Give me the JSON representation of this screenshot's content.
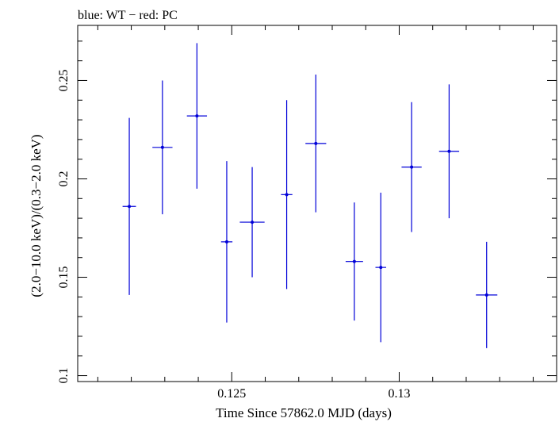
{
  "chart_data": {
    "type": "scatter",
    "title": "blue: WT − red: PC",
    "xlabel": "Time Since 57862.0 MJD (days)",
    "ylabel": "(2.0−10.0 keV)/(0.3−2.0 keV)",
    "xlim": [
      0.1204,
      0.1347
    ],
    "ylim": [
      0.097,
      0.278
    ],
    "x_ticks": [
      {
        "value": 0.125,
        "label": "0.125"
      },
      {
        "value": 0.13,
        "label": "0.13"
      }
    ],
    "y_ticks": [
      {
        "value": 0.1,
        "label": "0.1"
      },
      {
        "value": 0.15,
        "label": "0.15"
      },
      {
        "value": 0.2,
        "label": "0.2"
      },
      {
        "value": 0.25,
        "label": "0.25"
      }
    ],
    "grid": false,
    "series": [
      {
        "name": "WT",
        "color": "#0000d8",
        "points": [
          {
            "x": 0.12194,
            "xerr": 0.0002,
            "y": 0.186,
            "yerr_lo": 0.045,
            "yerr_hi": 0.045
          },
          {
            "x": 0.12293,
            "xerr": 0.0003,
            "y": 0.216,
            "yerr_lo": 0.034,
            "yerr_hi": 0.034
          },
          {
            "x": 0.12396,
            "xerr": 0.0003,
            "y": 0.232,
            "yerr_lo": 0.037,
            "yerr_hi": 0.037
          },
          {
            "x": 0.12485,
            "xerr": 0.00017,
            "y": 0.168,
            "yerr_lo": 0.041,
            "yerr_hi": 0.041
          },
          {
            "x": 0.12561,
            "xerr": 0.00037,
            "y": 0.178,
            "yerr_lo": 0.028,
            "yerr_hi": 0.028
          },
          {
            "x": 0.12664,
            "xerr": 0.00017,
            "y": 0.192,
            "yerr_lo": 0.048,
            "yerr_hi": 0.048
          },
          {
            "x": 0.12751,
            "xerr": 0.00031,
            "y": 0.218,
            "yerr_lo": 0.035,
            "yerr_hi": 0.035
          },
          {
            "x": 0.12866,
            "xerr": 0.00026,
            "y": 0.158,
            "yerr_lo": 0.03,
            "yerr_hi": 0.03
          },
          {
            "x": 0.12945,
            "xerr": 0.00016,
            "y": 0.155,
            "yerr_lo": 0.038,
            "yerr_hi": 0.038
          },
          {
            "x": 0.13037,
            "xerr": 0.0003,
            "y": 0.206,
            "yerr_lo": 0.033,
            "yerr_hi": 0.033
          },
          {
            "x": 0.13149,
            "xerr": 0.0003,
            "y": 0.214,
            "yerr_lo": 0.034,
            "yerr_hi": 0.034
          },
          {
            "x": 0.13261,
            "xerr": 0.00032,
            "y": 0.141,
            "yerr_lo": 0.027,
            "yerr_hi": 0.027
          }
        ]
      }
    ]
  }
}
